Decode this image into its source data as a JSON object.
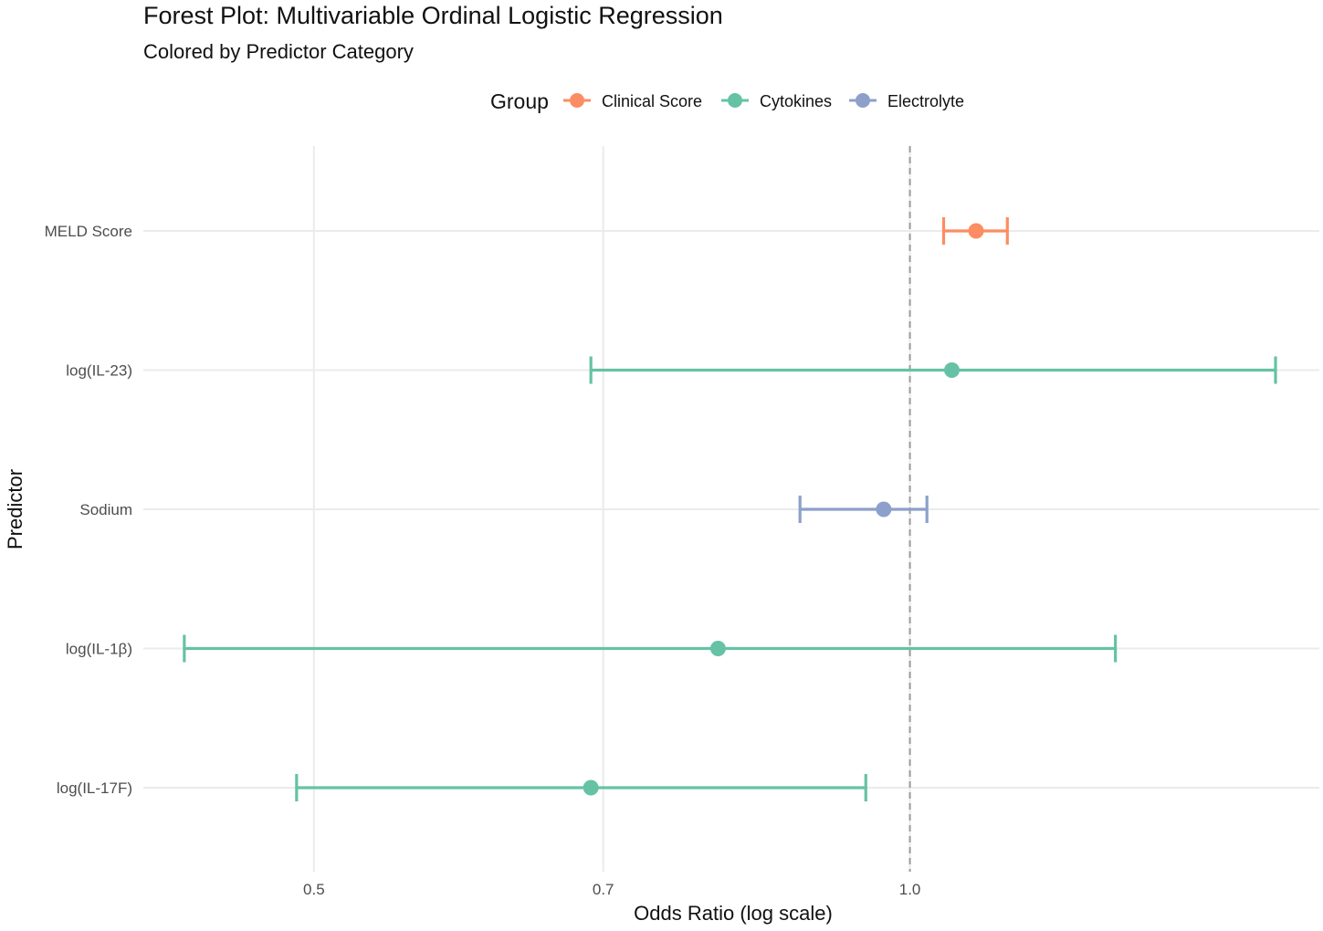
{
  "chart_data": {
    "type": "scatter",
    "title": "Forest Plot: Multivariable Ordinal Logistic Regression",
    "subtitle": "Colored by Predictor Category",
    "xlabel": "Odds Ratio (log scale)",
    "ylabel": "Predictor",
    "x_scale": "log",
    "xlim": [
      0.41,
      1.61
    ],
    "x_ticks": [
      0.5,
      0.7,
      1.0
    ],
    "x_tick_labels": [
      "0.5",
      "0.7",
      "1.0"
    ],
    "reference_line": 1.0,
    "grid": true,
    "legend": {
      "title": "Group",
      "position": "top",
      "entries": [
        {
          "name": "Clinical Score",
          "color": "#fc8d62"
        },
        {
          "name": "Cytokines",
          "color": "#66c2a5"
        },
        {
          "name": "Electrolyte",
          "color": "#8da0cb"
        }
      ]
    },
    "categories": [
      "MELD Score",
      "log(IL-23)",
      "Sodium",
      "log(IL-1β)",
      "log(IL-17F)"
    ],
    "points": [
      {
        "predictor": "MELD Score",
        "group": "Clinical Score",
        "or": 1.08,
        "lower": 1.04,
        "upper": 1.12
      },
      {
        "predictor": "log(IL-23)",
        "group": "Cytokines",
        "or": 1.05,
        "lower": 0.69,
        "upper": 1.53
      },
      {
        "predictor": "Sodium",
        "group": "Electrolyte",
        "or": 0.97,
        "lower": 0.88,
        "upper": 1.02
      },
      {
        "predictor": "log(IL-1β)",
        "group": "Cytokines",
        "or": 0.8,
        "lower": 0.43,
        "upper": 1.27
      },
      {
        "predictor": "log(IL-17F)",
        "group": "Cytokines",
        "or": 0.69,
        "lower": 0.49,
        "upper": 0.95
      }
    ]
  }
}
